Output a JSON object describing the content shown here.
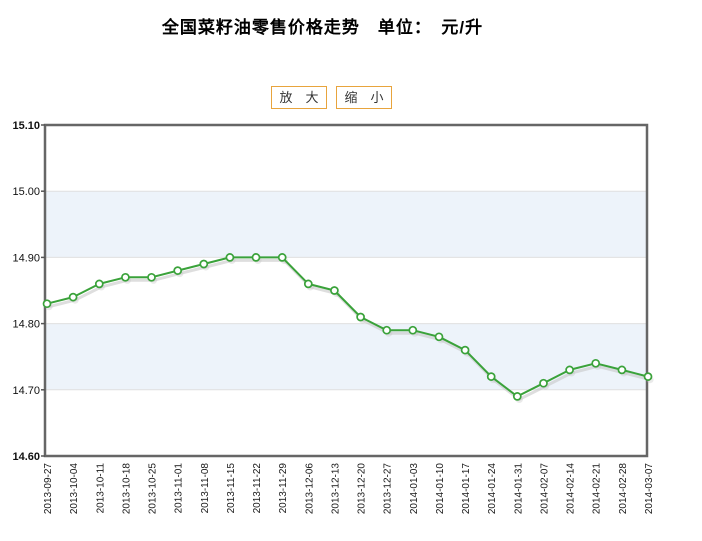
{
  "title": {
    "text": "全国菜籽油零售价格走势　单位：　元/升"
  },
  "toolbar": {
    "zoom_in_label": "放　大",
    "zoom_out_label": "缩　小"
  },
  "colors": {
    "line": "#3aa23a",
    "marker_fill": "#ffffff",
    "band_blue": "#edf3fa",
    "band_white": "#ffffff",
    "grid": "#e0e0e0",
    "border": "#666666",
    "shadow": "#c2c2c2",
    "button_border": "#e8a43d",
    "axis_text": "#111111"
  },
  "chart_data": {
    "type": "line",
    "title": "全国菜籽油零售价格走势",
    "ylabel": "元/升",
    "xlabel": "",
    "ylim": [
      14.6,
      15.1
    ],
    "yticks": [
      15.1,
      15.0,
      14.9,
      14.8,
      14.7,
      14.6
    ],
    "grid": true,
    "legend": false,
    "x": [
      "2013-09-27",
      "2013-10-04",
      "2013-10-11",
      "2013-10-18",
      "2013-10-25",
      "2013-11-01",
      "2013-11-08",
      "2013-11-15",
      "2013-11-22",
      "2013-11-29",
      "2013-12-06",
      "2013-12-13",
      "2013-12-20",
      "2013-12-27",
      "2014-01-03",
      "2014-01-10",
      "2014-01-17",
      "2014-01-24",
      "2014-01-31",
      "2014-02-07",
      "2014-02-14",
      "2014-02-21",
      "2014-02-28",
      "2014-03-07"
    ],
    "series": [
      {
        "name": "全国菜籽油零售价格",
        "values": [
          14.83,
          14.84,
          14.86,
          14.87,
          14.87,
          14.88,
          14.89,
          14.9,
          14.9,
          14.9,
          14.86,
          14.85,
          14.81,
          14.79,
          14.79,
          14.78,
          14.76,
          14.72,
          14.69,
          14.71,
          14.73,
          14.74,
          14.73,
          14.72
        ]
      }
    ]
  }
}
